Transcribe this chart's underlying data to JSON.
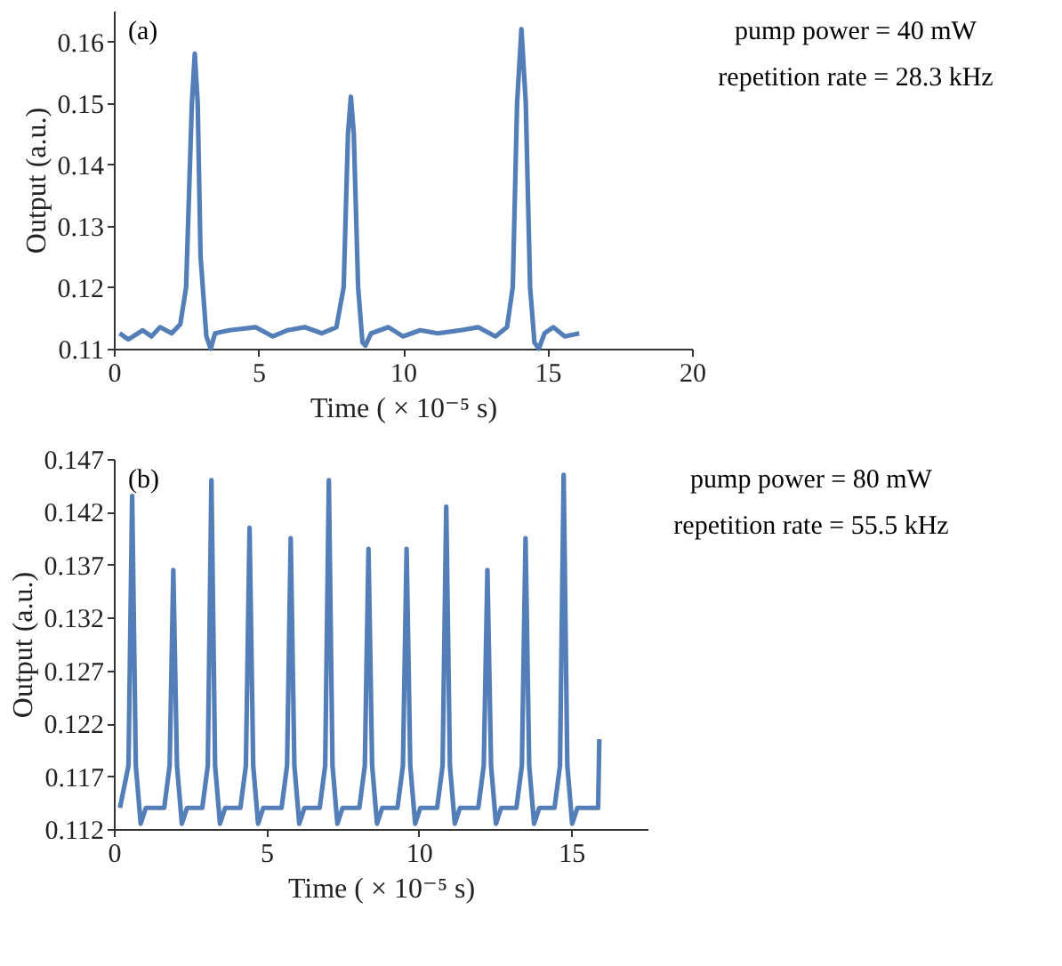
{
  "chart_data": [
    {
      "type": "line",
      "xlabel": "Time ( × 10⁻⁵ s)",
      "ylabel": "Output (a.u.)",
      "annotations": [
        "(a)",
        "pump power = 40 mW",
        "repetition rate = 28.3 kHz"
      ],
      "xlim": [
        0,
        20
      ],
      "ylim": [
        0.11,
        0.165
      ],
      "xticks": [
        0,
        5,
        10,
        15,
        20
      ],
      "yticks": [
        0.11,
        0.12,
        0.13,
        0.14,
        0.15,
        0.16
      ],
      "x": [
        0.2,
        0.5,
        1.0,
        1.3,
        1.6,
        2.0,
        2.3,
        2.5,
        2.7,
        2.8,
        2.9,
        3.0,
        3.2,
        3.35,
        3.5,
        4.0,
        4.9,
        5.5,
        6.0,
        6.6,
        7.2,
        7.7,
        7.95,
        8.1,
        8.2,
        8.3,
        8.45,
        8.6,
        8.7,
        8.9,
        9.5,
        10.0,
        10.6,
        11.2,
        12.0,
        12.6,
        13.2,
        13.6,
        13.8,
        13.95,
        14.1,
        14.25,
        14.4,
        14.55,
        14.7,
        14.9,
        15.2,
        15.6,
        16.1
      ],
      "series": [
        {
          "color": "#4a77b4",
          "values": [
            0.1125,
            0.1115,
            0.113,
            0.112,
            0.1135,
            0.1125,
            0.114,
            0.12,
            0.15,
            0.158,
            0.15,
            0.125,
            0.112,
            0.11,
            0.1125,
            0.113,
            0.1135,
            0.112,
            0.113,
            0.1135,
            0.1125,
            0.1135,
            0.12,
            0.145,
            0.151,
            0.145,
            0.12,
            0.111,
            0.1105,
            0.1125,
            0.1135,
            0.112,
            0.113,
            0.1125,
            0.113,
            0.1135,
            0.112,
            0.1135,
            0.12,
            0.15,
            0.162,
            0.15,
            0.12,
            0.111,
            0.11,
            0.1125,
            0.1135,
            0.112,
            0.1125
          ]
        }
      ]
    },
    {
      "type": "line",
      "xlabel": "Time ( × 10⁻⁵ s)",
      "ylabel": "Output (a.u.)",
      "annotations": [
        "(b)",
        "pump power = 80 mW",
        "repetition rate = 55.5 kHz"
      ],
      "xlim": [
        0,
        17.5
      ],
      "ylim": [
        0.112,
        0.147
      ],
      "xticks": [
        0,
        5,
        10,
        15
      ],
      "yticks": [
        0.112,
        0.117,
        0.122,
        0.127,
        0.132,
        0.137,
        0.142,
        0.147
      ],
      "x": [
        0.2,
        0.48,
        0.6,
        0.72,
        0.88,
        1.05,
        1.65,
        1.83,
        1.95,
        2.07,
        2.23,
        2.4,
        2.9,
        3.08,
        3.2,
        3.32,
        3.48,
        3.65,
        4.15,
        4.33,
        4.45,
        4.57,
        4.73,
        4.9,
        5.5,
        5.68,
        5.8,
        5.92,
        6.08,
        6.25,
        6.75,
        6.93,
        7.05,
        7.17,
        7.33,
        7.5,
        8.05,
        8.23,
        8.35,
        8.47,
        8.63,
        8.8,
        9.3,
        9.48,
        9.6,
        9.72,
        9.88,
        10.05,
        10.6,
        10.78,
        10.9,
        11.02,
        11.18,
        11.35,
        11.95,
        12.13,
        12.25,
        12.37,
        12.53,
        12.7,
        13.2,
        13.38,
        13.5,
        13.62,
        13.78,
        13.95,
        14.45,
        14.63,
        14.75,
        14.87,
        15.03,
        15.2,
        15.88,
        15.92
      ],
      "series": [
        {
          "color": "#4a77b4",
          "values": [
            0.114,
            0.118,
            0.1435,
            0.118,
            0.1125,
            0.114,
            0.114,
            0.118,
            0.1365,
            0.118,
            0.1125,
            0.114,
            0.114,
            0.118,
            0.145,
            0.118,
            0.1125,
            0.114,
            0.114,
            0.118,
            0.1405,
            0.118,
            0.1125,
            0.114,
            0.114,
            0.118,
            0.1395,
            0.118,
            0.1125,
            0.114,
            0.114,
            0.118,
            0.145,
            0.118,
            0.1125,
            0.114,
            0.114,
            0.118,
            0.1385,
            0.118,
            0.1125,
            0.114,
            0.114,
            0.118,
            0.1385,
            0.118,
            0.1125,
            0.114,
            0.114,
            0.118,
            0.1425,
            0.118,
            0.1125,
            0.114,
            0.114,
            0.118,
            0.1365,
            0.118,
            0.1125,
            0.114,
            0.114,
            0.118,
            0.1395,
            0.118,
            0.1125,
            0.114,
            0.114,
            0.118,
            0.1455,
            0.118,
            0.1125,
            0.114,
            0.114,
            0.1205
          ]
        }
      ]
    }
  ]
}
